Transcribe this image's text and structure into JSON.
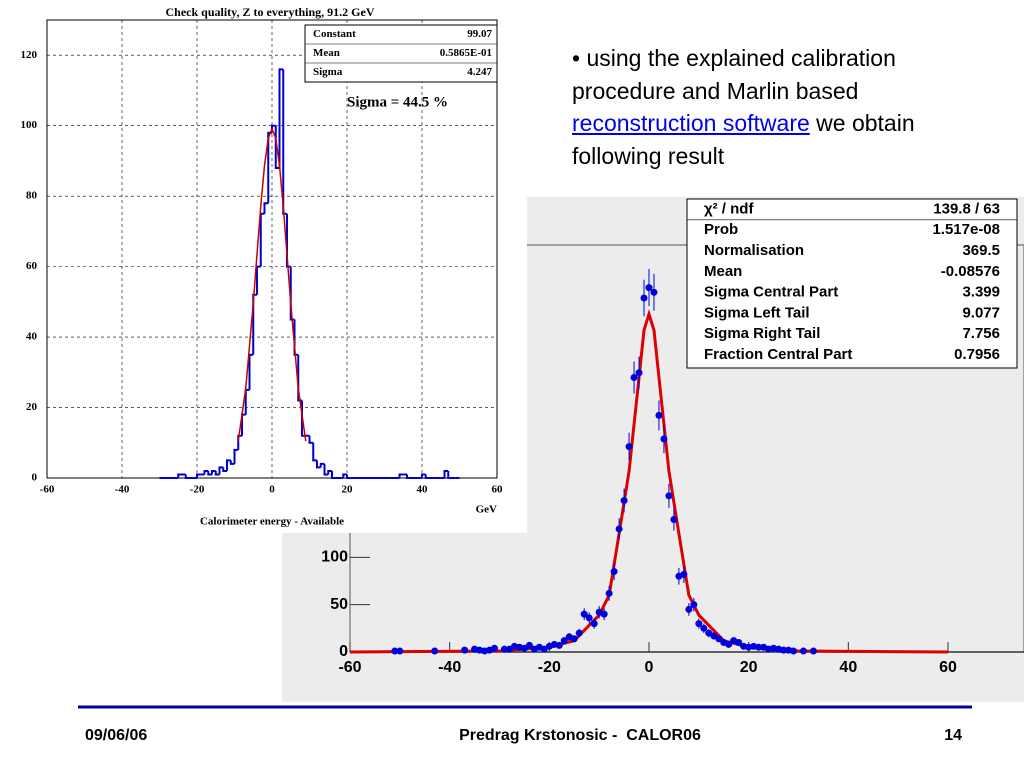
{
  "slide": {
    "bullet_before": "• using the explained calibration procedure and Marlin based",
    "bullet_link": "reconstruction software",
    "bullet_after": "we obtain following result",
    "footer_date": "09/06/06",
    "footer_author": "Predrag Krstonosic -  CALOR06",
    "footer_page": "14"
  },
  "chart_data": [
    {
      "type": "histogram",
      "title": "Check quality, Z to everything, 91.2 GeV",
      "stats": [
        [
          "Constant",
          "99.07"
        ],
        [
          "Mean",
          "0.5865E-01"
        ],
        [
          "Sigma",
          "4.247"
        ]
      ],
      "annotation": "Sigma = 44.5 %",
      "xlabel": "GeV",
      "caption": "Calorimeter energy - Available",
      "color": "#0000cc",
      "bins": [
        -30,
        -29,
        -28,
        -27,
        -26,
        -25,
        -24,
        -23,
        -22,
        -21,
        -20,
        -19,
        -18,
        -17,
        -16,
        -15,
        -14,
        -13,
        -12,
        -11,
        -10,
        -9,
        -8,
        -7,
        -6,
        -5,
        -4,
        -3,
        -2,
        -1,
        0,
        1,
        2,
        3,
        4,
        5,
        6,
        7,
        8,
        9,
        10,
        11,
        12,
        13,
        14,
        15,
        16,
        17,
        18,
        19,
        20,
        21,
        22,
        23,
        24,
        25,
        26,
        27,
        28,
        29,
        30,
        31,
        32,
        33,
        34,
        35,
        36,
        37,
        38,
        39,
        40,
        41,
        42,
        43,
        44,
        45,
        46,
        47,
        48,
        49,
        50
      ],
      "values": [
        0,
        0,
        0,
        0,
        0,
        1,
        1,
        0,
        0,
        0,
        1,
        1,
        2,
        1,
        2,
        1,
        3,
        2,
        5,
        4,
        8,
        12,
        18,
        25,
        35,
        52,
        60,
        75,
        78,
        98,
        100,
        88,
        116,
        75,
        60,
        45,
        35,
        22,
        12,
        12,
        10,
        5,
        3,
        4,
        1,
        2,
        0,
        0,
        0,
        1,
        0,
        0,
        0,
        0,
        0,
        0,
        0,
        0,
        0,
        0,
        0,
        0,
        0,
        0,
        1,
        1,
        0,
        0,
        0,
        0,
        1,
        0,
        0,
        0,
        0,
        0,
        2,
        0,
        0,
        0
      ],
      "fit": {
        "color": "#cc0000",
        "x": [
          -9,
          -7,
          -5,
          -4,
          -3,
          -2,
          -1,
          0,
          1,
          2,
          3,
          4,
          5,
          7,
          9
        ],
        "values": [
          10.5,
          25.5,
          49.5,
          63.5,
          77.2,
          88.7,
          96.4,
          99.07,
          96.4,
          88.7,
          77.2,
          63.5,
          49.5,
          25.5,
          10.5
        ]
      },
      "xlim": [
        -60,
        60
      ],
      "xticks": [
        -60,
        -40,
        -20,
        0,
        20,
        40,
        60
      ],
      "ylim": [
        0,
        130
      ],
      "yticks": [
        0,
        20,
        40,
        60,
        80,
        100,
        120
      ],
      "grid": true
    },
    {
      "type": "scatter",
      "color": "#0000dd",
      "stats": [
        [
          "χ² / ndf",
          "139.8 / 63"
        ],
        [
          "Prob",
          "1.517e-08"
        ],
        [
          "Normalisation",
          "369.5"
        ],
        [
          "Mean",
          "-0.08576"
        ],
        [
          "Sigma Central Part",
          "3.399"
        ],
        [
          "Sigma Left Tail",
          "9.077"
        ],
        [
          "Sigma Right Tail",
          "7.756"
        ],
        [
          "Fraction Central Part",
          "0.7956"
        ]
      ],
      "x": [
        -51,
        -50,
        -43,
        -37,
        -35,
        -34,
        -33,
        -32,
        -31,
        -29,
        -28,
        -27,
        -26,
        -25,
        -24,
        -23,
        -22,
        -21,
        -20,
        -19,
        -18,
        -17,
        -16,
        -15,
        -14,
        -13,
        -12,
        -11,
        -10,
        -9,
        -8,
        -7,
        -6,
        -5,
        -4,
        -3,
        -2,
        -1,
        0,
        1,
        2,
        3,
        4,
        5,
        6,
        7,
        8,
        9,
        10,
        11,
        12,
        13,
        14,
        15,
        16,
        17,
        18,
        19,
        20,
        21,
        22,
        23,
        24,
        25,
        26,
        27,
        28,
        29,
        31,
        33
      ],
      "values": [
        1,
        1,
        1,
        2,
        3,
        2,
        1,
        2,
        4,
        3,
        3,
        6,
        5,
        4,
        7,
        3,
        5,
        3,
        6,
        8,
        7,
        12,
        16,
        14,
        20,
        40,
        36,
        30,
        42,
        40,
        62,
        85,
        130,
        160,
        217,
        290,
        295,
        374,
        385,
        380,
        250,
        225,
        165,
        140,
        80,
        82,
        45,
        50,
        30,
        25,
        20,
        17,
        14,
        10,
        8,
        12,
        10,
        6,
        5,
        6,
        5,
        5,
        3,
        4,
        3,
        2,
        2,
        1,
        1,
        1
      ],
      "errors": [
        1,
        1,
        1,
        1.4,
        1.7,
        1.4,
        1,
        1.4,
        2,
        1.7,
        1.7,
        2.4,
        2.2,
        2,
        2.6,
        1.7,
        2.2,
        1.7,
        2.4,
        2.8,
        2.6,
        3.5,
        4,
        3.7,
        4.5,
        6.3,
        6,
        5.5,
        6.5,
        6.3,
        7.9,
        9.2,
        11.4,
        12.6,
        14.7,
        17,
        17.2,
        19.3,
        19.6,
        19.5,
        15.8,
        15,
        12.8,
        11.8,
        8.9,
        9.1,
        6.7,
        7.1,
        5.5,
        5,
        4.5,
        4.1,
        3.7,
        3.2,
        2.8,
        3.5,
        3.2,
        2.4,
        2.2,
        2.4,
        2.2,
        2.2,
        1.7,
        2,
        1.7,
        1.4,
        1.4,
        1,
        1,
        1
      ],
      "fit": {
        "color": "#dd0000",
        "x": [
          -60,
          -30,
          -20,
          -15,
          -10,
          -8,
          -6,
          -4,
          -2,
          -1,
          0,
          1,
          2,
          4,
          6,
          8,
          10,
          15,
          20,
          30,
          60
        ],
        "values": [
          0,
          1,
          5,
          12,
          39,
          60,
          125,
          191,
          290,
          340,
          357,
          340,
          290,
          191,
          125,
          60,
          39,
          12,
          5,
          1,
          0
        ]
      },
      "xlim": [
        -60,
        60
      ],
      "xticks": [
        -60,
        -40,
        -20,
        0,
        20,
        40,
        60
      ],
      "ylim": [
        0,
        430
      ],
      "yticks": [
        0,
        50,
        100
      ]
    }
  ]
}
